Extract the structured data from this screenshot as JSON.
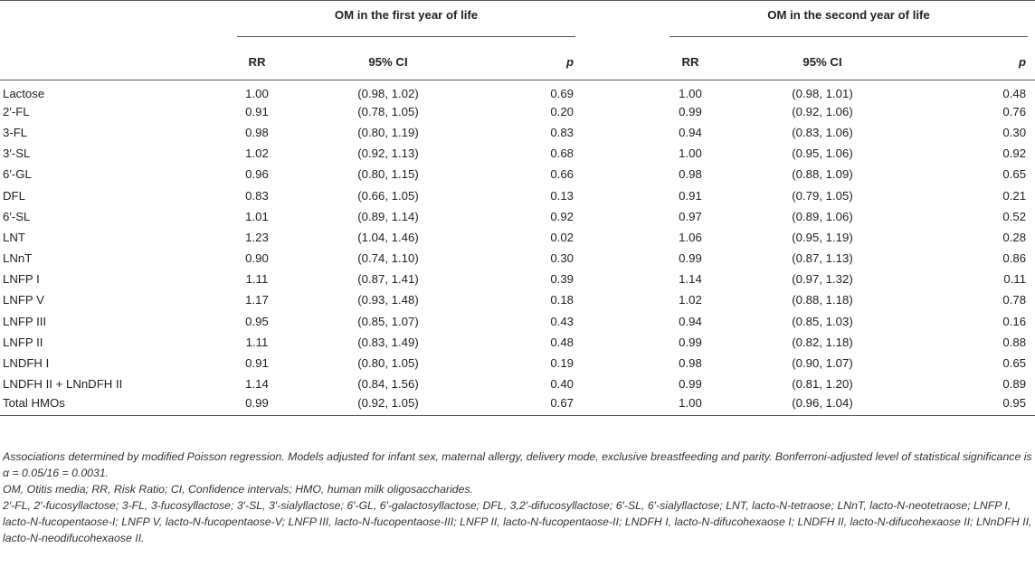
{
  "table": {
    "group_headers": [
      "OM in the first year of life",
      "OM in the second year of life"
    ],
    "sub_headers": [
      "RR",
      "95% CI",
      "p",
      "RR",
      "95% CI",
      "p"
    ],
    "rows": [
      {
        "label": "Lactose",
        "rr1": "1.00",
        "ci1": "(0.98, 1.02)",
        "p1": "0.69",
        "rr2": "1.00",
        "ci2": "(0.98, 1.01)",
        "p2": "0.48"
      },
      {
        "label": "2′-FL",
        "rr1": "0.91",
        "ci1": "(0.78, 1.05)",
        "p1": "0.20",
        "rr2": "0.99",
        "ci2": "(0.92, 1.06)",
        "p2": "0.76"
      },
      {
        "label": "3-FL",
        "rr1": "0.98",
        "ci1": "(0.80, 1.19)",
        "p1": "0.83",
        "rr2": "0.94",
        "ci2": "(0.83, 1.06)",
        "p2": "0.30"
      },
      {
        "label": "3′-SL",
        "rr1": "1.02",
        "ci1": "(0.92, 1.13)",
        "p1": "0.68",
        "rr2": "1.00",
        "ci2": "(0.95, 1.06)",
        "p2": "0.92"
      },
      {
        "label": "6′-GL",
        "rr1": "0.96",
        "ci1": "(0.80, 1.15)",
        "p1": "0.66",
        "rr2": "0.98",
        "ci2": "(0.88, 1.09)",
        "p2": "0.65"
      },
      {
        "label": "DFL",
        "rr1": "0.83",
        "ci1": "(0.66, 1.05)",
        "p1": "0.13",
        "rr2": "0.91",
        "ci2": "(0.79, 1.05)",
        "p2": "0.21"
      },
      {
        "label": "6′-SL",
        "rr1": "1.01",
        "ci1": "(0.89, 1.14)",
        "p1": "0.92",
        "rr2": "0.97",
        "ci2": "(0.89, 1.06)",
        "p2": "0.52"
      },
      {
        "label": "LNT",
        "rr1": "1.23",
        "ci1": "(1.04, 1.46)",
        "p1": "0.02",
        "rr2": "1.06",
        "ci2": "(0.95, 1.19)",
        "p2": "0.28"
      },
      {
        "label": "LNnT",
        "rr1": "0.90",
        "ci1": "(0.74, 1.10)",
        "p1": "0.30",
        "rr2": "0.99",
        "ci2": "(0.87, 1.13)",
        "p2": "0.86"
      },
      {
        "label": "LNFP I",
        "rr1": "1.11",
        "ci1": "(0.87, 1.41)",
        "p1": "0.39",
        "rr2": "1.14",
        "ci2": "(0.97, 1.32)",
        "p2": "0.11"
      },
      {
        "label": "LNFP V",
        "rr1": "1.17",
        "ci1": "(0.93, 1.48)",
        "p1": "0.18",
        "rr2": "1.02",
        "ci2": "(0.88, 1.18)",
        "p2": "0.78"
      },
      {
        "label": "LNFP III",
        "rr1": "0.95",
        "ci1": "(0.85, 1.07)",
        "p1": "0.43",
        "rr2": "0.94",
        "ci2": "(0.85, 1.03)",
        "p2": "0.16"
      },
      {
        "label": "LNFP II",
        "rr1": "1.11",
        "ci1": "(0.83, 1.49)",
        "p1": "0.48",
        "rr2": "0.99",
        "ci2": "(0.82, 1.18)",
        "p2": "0.88"
      },
      {
        "label": "LNDFH I",
        "rr1": "0.91",
        "ci1": "(0.80, 1.05)",
        "p1": "0.19",
        "rr2": "0.98",
        "ci2": "(0.90, 1.07)",
        "p2": "0.65"
      },
      {
        "label": "LNDFH II + LNnDFH II",
        "rr1": "1.14",
        "ci1": "(0.84, 1.56)",
        "p1": "0.40",
        "rr2": "0.99",
        "ci2": "(0.81, 1.20)",
        "p2": "0.89"
      },
      {
        "label": "Total HMOs",
        "rr1": "0.99",
        "ci1": "(0.92, 1.05)",
        "p1": "0.67",
        "rr2": "1.00",
        "ci2": "(0.96, 1.04)",
        "p2": "0.95"
      }
    ]
  },
  "footnotes": [
    "Associations determined by modified Poisson regression. Models adjusted for infant sex, maternal allergy, delivery mode, exclusive breastfeeding and parity. Bonferroni-adjusted level of statistical significance is α = 0.05/16 = 0.0031.",
    "OM, Otitis media; RR, Risk Ratio; CI, Confidence intervals; HMO, human milk oligosaccharides.",
    "2′-FL, 2′-fucosyllactose; 3-FL, 3-fucosyllactose; 3′-SL, 3′-sialyllactose; 6′-GL, 6′-galactosyllactose; DFL, 3,2′-difucosyllactose; 6′-SL, 6′-sialyllactose; LNT, lacto-N-tetraose; LNnT, lacto-N-neotetraose; LNFP I, lacto-N-fucopentaose-I; LNFP V, lacto-N-fucopentaose-V; LNFP III, lacto-N-fucopentaose-III; LNFP II, lacto-N-fucopentaose-II; LNDFH I, lacto-N-difucohexaose I; LNDFH II, lacto-N-difucohexaose II; LNnDFH II, lacto-N-neodifucohexaose II."
  ]
}
